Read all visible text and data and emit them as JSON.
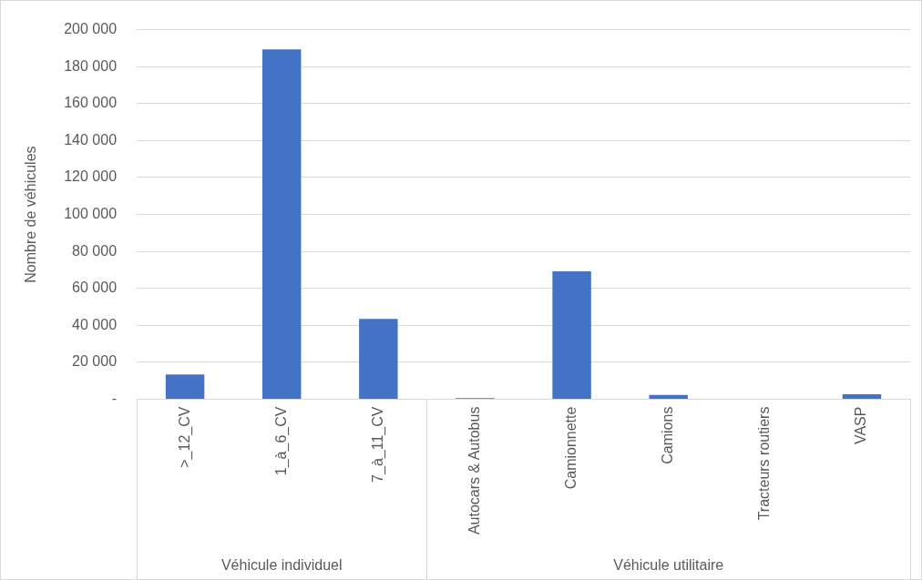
{
  "chart_data": {
    "type": "bar",
    "ylabel": "Nombre de véhicules",
    "categories": [
      ">_12_CV",
      "1_à_6_CV",
      "7_à_11_CV",
      "Autocars & Autobus",
      "Camionnette",
      "Camions",
      "Tracteurs routiers",
      "VASP"
    ],
    "values": [
      13500,
      189300,
      43500,
      600,
      69200,
      2400,
      0,
      2700
    ],
    "color": "#4472c4",
    "ylim": [
      0,
      200000
    ],
    "yticks": [
      {
        "value": 0,
        "label": "-"
      },
      {
        "value": 20000,
        "label": "20 000"
      },
      {
        "value": 40000,
        "label": "40 000"
      },
      {
        "value": 60000,
        "label": "60 000"
      },
      {
        "value": 80000,
        "label": "80 000"
      },
      {
        "value": 100000,
        "label": "100 000"
      },
      {
        "value": 120000,
        "label": "120 000"
      },
      {
        "value": 140000,
        "label": "140 000"
      },
      {
        "value": 160000,
        "label": "160 000"
      },
      {
        "value": 180000,
        "label": "180 000"
      },
      {
        "value": 200000,
        "label": "200 000"
      }
    ],
    "annotations": [
      "Véhicule individuel",
      "Véhicule utilitaire"
    ],
    "grid": "y"
  }
}
